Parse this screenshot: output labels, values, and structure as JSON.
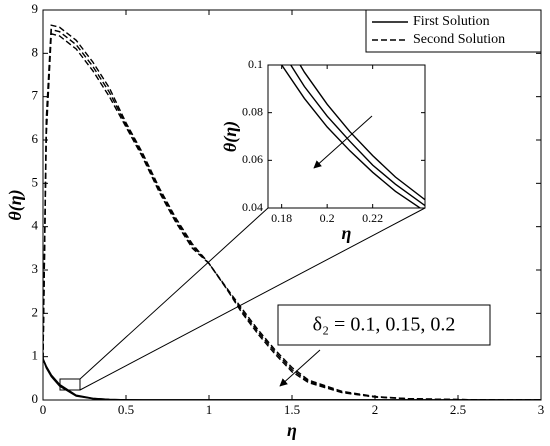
{
  "chart_data": [
    {
      "type": "line",
      "xlabel": "η",
      "ylabel": "θ(η)",
      "x": [
        0,
        0.02,
        0.05,
        0.1,
        0.2,
        0.3,
        0.4,
        0.5,
        0.6,
        0.7,
        0.8,
        0.9,
        1,
        1.1,
        1.2,
        1.3,
        1.4,
        1.5,
        1.6,
        1.8,
        2,
        2.2,
        2.5,
        2.8,
        3
      ],
      "xlim": [
        0,
        3
      ],
      "xticks": [
        0,
        0.5,
        1,
        1.5,
        2,
        2.5,
        3
      ],
      "ylim": [
        0,
        9
      ],
      "yticks": [
        0,
        1,
        2,
        3,
        4,
        5,
        6,
        7,
        8,
        9
      ],
      "legend": "upper right",
      "series": [
        {
          "name": "First Solution",
          "color": "#000000",
          "dash": "solid",
          "values": [
            [
              0.95,
              0.78,
              0.58,
              0.36,
              0.11,
              0.04,
              0.015,
              0.005,
              0,
              0,
              0,
              0,
              0,
              0,
              0,
              0,
              0,
              0,
              0,
              0,
              0,
              0,
              0,
              0,
              0
            ],
            [
              0.95,
              0.76,
              0.56,
              0.34,
              0.1,
              0.035,
              0.012,
              0.004,
              0,
              0,
              0,
              0,
              0,
              0,
              0,
              0,
              0,
              0,
              0,
              0,
              0,
              0,
              0,
              0,
              0
            ],
            [
              0.95,
              0.74,
              0.54,
              0.32,
              0.09,
              0.03,
              0.01,
              0.003,
              0,
              0,
              0,
              0,
              0,
              0,
              0,
              0,
              0,
              0,
              0,
              0,
              0,
              0,
              0,
              0,
              0
            ]
          ]
        },
        {
          "name": "Second Solution",
          "color": "#000000",
          "dash": "dashed",
          "values": [
            [
              0.95,
              6.5,
              8.65,
              8.6,
              8.3,
              7.8,
              7.2,
              6.4,
              5.7,
              4.9,
              4.2,
              3.6,
              3.15,
              2.6,
              2.0,
              1.5,
              1.05,
              0.65,
              0.4,
              0.17,
              0.07,
              0.03,
              0.01,
              0,
              0
            ],
            [
              0.95,
              6.3,
              8.55,
              8.5,
              8.2,
              7.7,
              7.1,
              6.35,
              5.65,
              4.85,
              4.15,
              3.55,
              3.15,
              2.6,
              2.05,
              1.55,
              1.1,
              0.7,
              0.43,
              0.18,
              0.07,
              0.03,
              0.01,
              0,
              0
            ],
            [
              0.95,
              6.1,
              8.45,
              8.4,
              8.1,
              7.6,
              7.0,
              6.3,
              5.6,
              4.8,
              4.1,
              3.5,
              3.15,
              2.62,
              2.1,
              1.6,
              1.15,
              0.75,
              0.46,
              0.2,
              0.08,
              0.03,
              0.01,
              0,
              0
            ]
          ]
        }
      ],
      "annotation": "δ₂ = 0.1, 0.15, 0.2"
    },
    {
      "type": "line",
      "xlabel": "η",
      "ylabel": "θ(η)",
      "x": [
        0.174,
        0.18,
        0.19,
        0.2,
        0.21,
        0.22,
        0.23,
        0.243
      ],
      "xlim": [
        0.174,
        0.243
      ],
      "xticks": [
        0.18,
        0.2,
        0.22
      ],
      "ylim": [
        0.04,
        0.1
      ],
      "yticks": [
        0.04,
        0.06,
        0.08,
        0.1
      ],
      "series": [
        {
          "color": "#000000",
          "dash": "solid",
          "values": [
            [
              0.123,
              0.113,
              0.097,
              0.0835,
              0.072,
              0.062,
              0.053,
              0.0435
            ],
            [
              0.116,
              0.106,
              0.091,
              0.0785,
              0.068,
              0.058,
              0.05,
              0.041
            ],
            [
              0.109,
              0.1,
              0.086,
              0.074,
              0.064,
              0.055,
              0.047,
              0.0386
            ]
          ]
        }
      ]
    }
  ]
}
